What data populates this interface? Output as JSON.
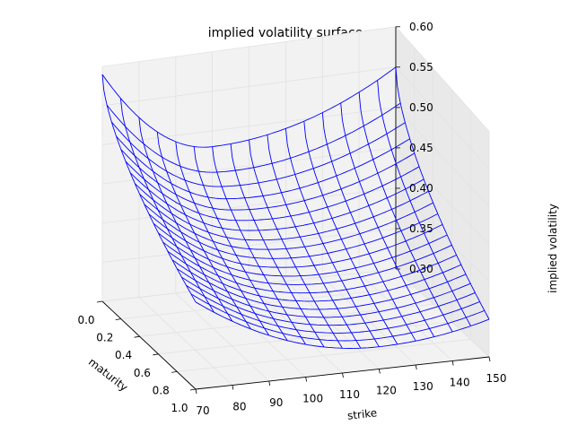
{
  "chart_data": {
    "type": "surface3d",
    "title": "implied volatility surface",
    "xlabel": "strike",
    "ylabel": "maturity",
    "zlabel": "implied volatility",
    "x_ticks": [
      "70",
      "80",
      "90",
      "100",
      "110",
      "120",
      "130",
      "140",
      "150"
    ],
    "y_ticks": [
      "0.0",
      "0.2",
      "0.4",
      "0.6",
      "0.8",
      "1.0"
    ],
    "z_ticks": [
      "0.30",
      "0.35",
      "0.40",
      "0.45",
      "0.50",
      "0.55",
      "0.60"
    ],
    "xlim": [
      70,
      150
    ],
    "ylim": [
      0.0,
      1.0
    ],
    "zlim": [
      0.3,
      0.6
    ],
    "grid": true,
    "wire_color": "#0000ff",
    "surface": {
      "strike_range": [
        70,
        150
      ],
      "maturity_range": [
        0.0,
        1.0
      ],
      "strike_divisions": 16,
      "maturity_divisions": 20,
      "near_term_smile": {
        "at_strike_70": 0.59,
        "min_near_strike_100": 0.48,
        "at_strike_150": 0.55
      },
      "long_term_smile": {
        "at_strike_70": 0.42,
        "min_near_strike_120": 0.33,
        "at_strike_150": 0.35
      }
    }
  }
}
